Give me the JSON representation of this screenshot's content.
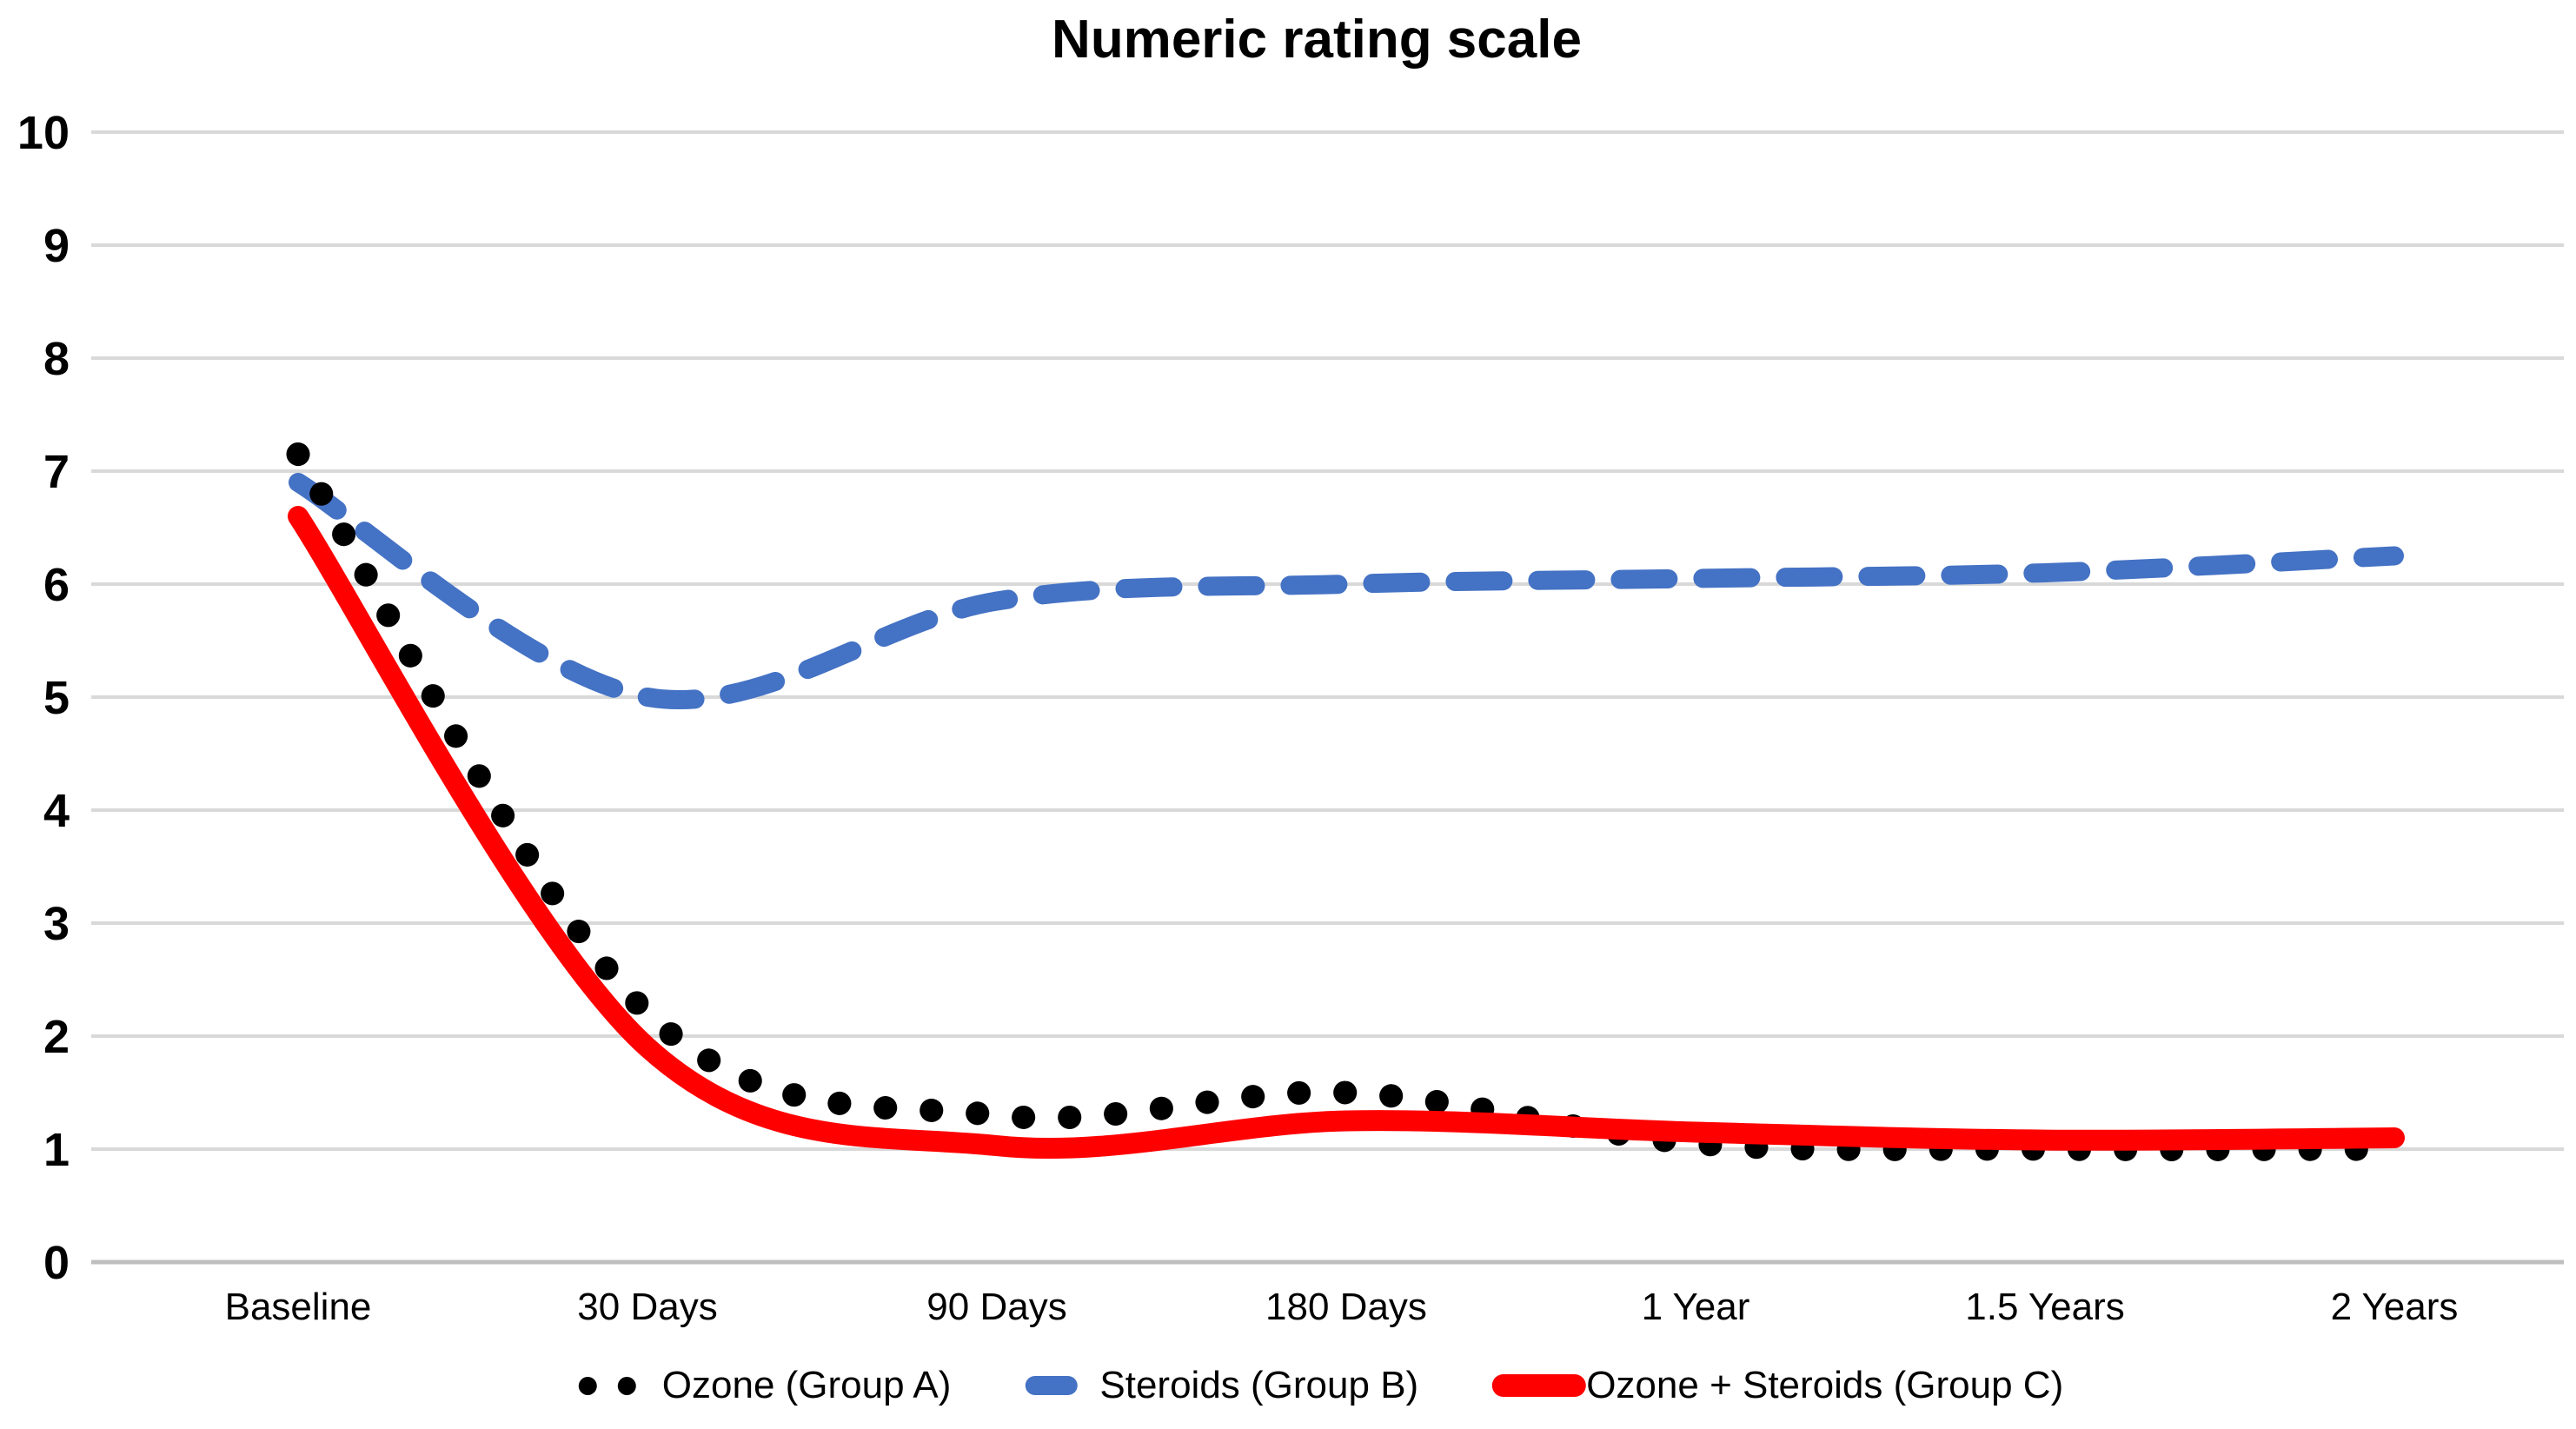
{
  "chart_data": {
    "type": "line",
    "title": "Numeric rating scale",
    "categories": [
      "Baseline",
      "30 Days",
      "90 Days",
      "180 Days",
      "1 Year",
      "1.5 Years",
      "2 Years"
    ],
    "series": [
      {
        "name": "Ozone (Group A)",
        "style": "dotted",
        "color": "#000000",
        "legend_swatch": "two-dots",
        "values": [
          7.15,
          2.2,
          1.3,
          1.5,
          1.05,
          1.0,
          1.0
        ]
      },
      {
        "name": "Steroids (Group B)",
        "style": "dashed",
        "color": "#4472C4",
        "legend_swatch": "rounded-dash",
        "values": [
          6.9,
          5.0,
          5.85,
          6.0,
          6.05,
          6.1,
          6.25
        ]
      },
      {
        "name": "Ozone + Steroids (Group C)",
        "style": "solid",
        "color": "#FF0000",
        "legend_swatch": "thick-rounded-dash",
        "values": [
          6.6,
          1.9,
          1.03,
          1.25,
          1.15,
          1.08,
          1.1
        ]
      }
    ],
    "xlabel": "",
    "ylabel": "",
    "ylim": [
      0,
      10
    ],
    "y_ticks": [
      0,
      1,
      2,
      3,
      4,
      5,
      6,
      7,
      8,
      9,
      10
    ],
    "grid": true,
    "legend_position": "bottom",
    "colors": {
      "gridline": "#D9D9D9",
      "axis_line": "#BFBFBF",
      "text": "#000000"
    }
  }
}
